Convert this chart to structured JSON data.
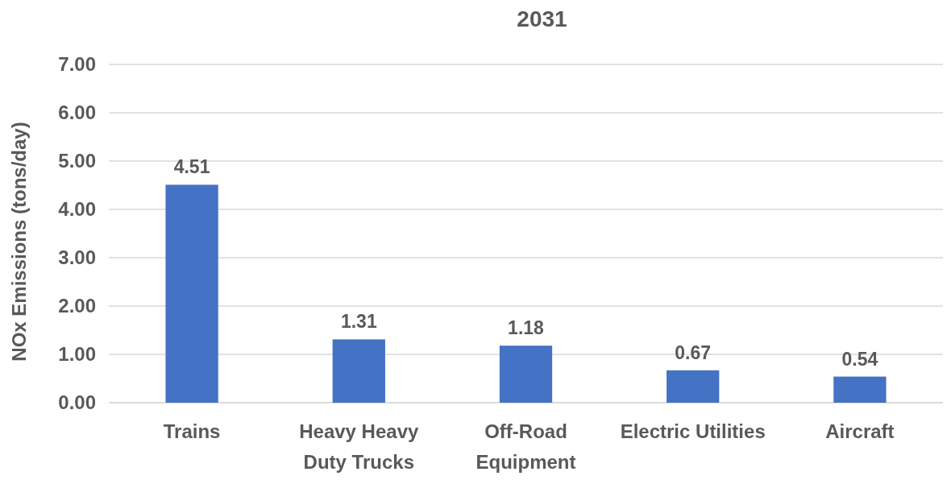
{
  "chart_data": {
    "type": "bar",
    "title": "2031",
    "ylabel": "NOx Emissions (tons/day)",
    "categories": [
      "Trains",
      "Heavy Heavy\nDuty Trucks",
      "Off-Road\nEquipment",
      "Electric Utilities",
      "Aircraft"
    ],
    "values": [
      4.51,
      1.31,
      1.18,
      0.67,
      0.54
    ],
    "color": "#4472c4",
    "ylim": [
      0,
      7
    ],
    "yticks": [
      {
        "value": 0,
        "label": "0.00"
      },
      {
        "value": 1,
        "label": "1.00"
      },
      {
        "value": 2,
        "label": "2.00"
      },
      {
        "value": 3,
        "label": "3.00"
      },
      {
        "value": 4,
        "label": "4.00"
      },
      {
        "value": 5,
        "label": "5.00"
      },
      {
        "value": 6,
        "label": "6.00"
      },
      {
        "value": 7,
        "label": "7.00"
      }
    ],
    "grid": "y",
    "data_labels": true
  }
}
